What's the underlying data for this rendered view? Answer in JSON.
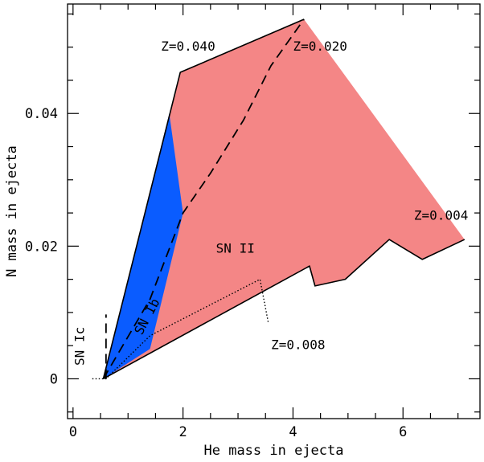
{
  "chart_data": {
    "type": "area",
    "title": "",
    "xlabel": "He mass in ejecta",
    "ylabel": "N mass in ejecta",
    "xlim": [
      -0.1,
      7.4
    ],
    "ylim": [
      -0.006,
      0.0565
    ],
    "x_ticks": [
      0,
      2,
      4,
      6
    ],
    "x_tick_labels": [
      "0",
      "2",
      "4",
      "6"
    ],
    "y_ticks": [
      0,
      0.02,
      0.04
    ],
    "y_tick_labels": [
      "0",
      "0.02",
      "0.04"
    ],
    "x_minor_step": 0.5,
    "y_minor_step": 0.005,
    "grid": false,
    "colors": {
      "sn2_region": "#f48686",
      "snib_region": "#0a5cff",
      "line": "#000000"
    },
    "regions": [
      {
        "id": "sn-ii",
        "color": "#f48686",
        "points": [
          [
            0.55,
            0.0
          ],
          [
            1.95,
            0.0462
          ],
          [
            4.2,
            0.0542
          ],
          [
            7.12,
            0.021
          ],
          [
            6.35,
            0.018
          ],
          [
            5.75,
            0.021
          ],
          [
            4.95,
            0.015
          ],
          [
            4.4,
            0.014
          ],
          [
            4.3,
            0.017
          ],
          [
            0.55,
            0.0
          ]
        ]
      },
      {
        "id": "sn-ib",
        "color": "#0a5cff",
        "points": [
          [
            0.55,
            0.0
          ],
          [
            1.75,
            0.04
          ],
          [
            2.0,
            0.025
          ],
          [
            1.4,
            0.0045
          ],
          [
            0.55,
            0.0
          ]
        ]
      }
    ],
    "series": [
      {
        "id": "upper-boundary",
        "style": "solid",
        "points": [
          [
            0.55,
            0.0
          ],
          [
            1.95,
            0.0462
          ],
          [
            4.2,
            0.0542
          ]
        ]
      },
      {
        "id": "lower-boundary",
        "style": "solid",
        "points": [
          [
            0.55,
            0.0
          ],
          [
            4.3,
            0.017
          ],
          [
            4.4,
            0.014
          ],
          [
            4.95,
            0.015
          ],
          [
            5.75,
            0.021
          ],
          [
            6.35,
            0.018
          ],
          [
            7.12,
            0.021
          ]
        ]
      },
      {
        "id": "z-0.020-track",
        "style": "dashed",
        "points": [
          [
            0.55,
            0.0
          ],
          [
            1.4,
            0.012
          ],
          [
            2.0,
            0.025
          ],
          [
            2.5,
            0.031
          ],
          [
            3.1,
            0.039
          ],
          [
            3.6,
            0.0472
          ],
          [
            4.2,
            0.0542
          ]
        ]
      },
      {
        "id": "z-0.008-track",
        "style": "dotted",
        "points": [
          [
            0.35,
            0.0
          ],
          [
            0.6,
            0.0
          ],
          [
            1.4,
            0.0065
          ],
          [
            3.4,
            0.015
          ],
          [
            3.55,
            0.0085
          ]
        ]
      },
      {
        "id": "sn-ic-divider",
        "style": "dashed",
        "points": [
          [
            0.6,
            0.0
          ],
          [
            0.6,
            0.0097
          ]
        ]
      }
    ],
    "annotations": [
      {
        "text": "Z=0.040",
        "x": 1.6,
        "y": 0.0495,
        "rotate": 0
      },
      {
        "text": "Z=0.020",
        "x": 4.0,
        "y": 0.0495,
        "rotate": 0
      },
      {
        "text": "Z=0.004",
        "x": 6.2,
        "y": 0.024,
        "rotate": 0
      },
      {
        "text": "SN II",
        "x": 2.6,
        "y": 0.019,
        "rotate": 0
      },
      {
        "text": "Z=0.008",
        "x": 3.6,
        "y": 0.0045,
        "rotate": 0
      },
      {
        "text": "SN Ib",
        "x": 1.25,
        "y": 0.0065,
        "rotate": -62
      },
      {
        "text": "SN Ic",
        "x": 0.2,
        "y": 0.002,
        "rotate": -90
      }
    ]
  }
}
